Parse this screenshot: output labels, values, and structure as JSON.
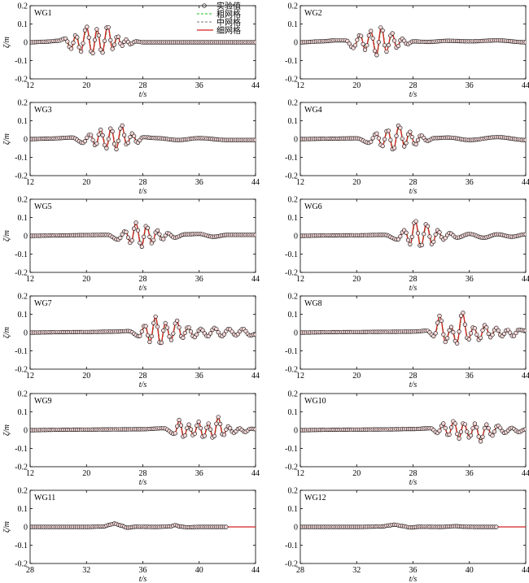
{
  "legend": [
    {
      "label": "实验值",
      "style": "marker",
      "color": "#000000"
    },
    {
      "label": "粗网格",
      "style": "dashed",
      "color": "#22b822"
    },
    {
      "label": "中网格",
      "style": "dashed",
      "color": "#777777"
    },
    {
      "label": "细网格",
      "style": "solid",
      "color": "#d42020"
    }
  ],
  "colors": {
    "coarse": "#22b822",
    "medium": "#777777",
    "fine": "#d42020",
    "experiment": "#000000",
    "marker_fill": "#f7d9d9"
  },
  "chart_data": [
    {
      "type": "line",
      "title": "WG1",
      "xlabel": "t/s",
      "ylabel": "ζ/m",
      "xlim": [
        12,
        44
      ],
      "ylim": [
        -0.2,
        0.2
      ],
      "xticks": [
        "12",
        "20",
        "28",
        "36",
        "44"
      ],
      "yticks": [
        "0.2",
        "0.1",
        "0",
        "-0.1",
        "-0.2"
      ],
      "grid": false,
      "wave": {
        "x": [
          12,
          14,
          16,
          17,
          17.8,
          18.5,
          19.2,
          20,
          20.8,
          21.5,
          22.2,
          23,
          23.7,
          24.4,
          25,
          25.6,
          26.2,
          27,
          28,
          30,
          33,
          36,
          40,
          44
        ],
        "y": [
          0,
          0.003,
          0.008,
          0.02,
          -0.035,
          0.04,
          -0.05,
          0.085,
          -0.065,
          0.07,
          -0.06,
          0.09,
          -0.035,
          0.035,
          -0.02,
          0.015,
          -0.01,
          0.005,
          0,
          0,
          0,
          0,
          0,
          0
        ]
      },
      "exp_window": [
        12,
        44
      ]
    },
    {
      "type": "line",
      "title": "WG2",
      "xlabel": "t/s",
      "ylabel": "",
      "xlim": [
        12,
        44
      ],
      "ylim": [
        -0.2,
        0.2
      ],
      "xticks": [
        "12",
        "20",
        "28",
        "36",
        "44"
      ],
      "yticks": [
        "0.2",
        "0.1",
        "0",
        "-0.1",
        "-0.2"
      ],
      "grid": false,
      "wave": {
        "x": [
          12,
          15,
          17,
          18.5,
          19.5,
          20.5,
          21.2,
          22,
          22.8,
          23.5,
          24.2,
          25,
          25.7,
          26.4,
          27.2,
          28,
          30,
          33,
          36,
          40,
          44
        ],
        "y": [
          0,
          0.005,
          0.01,
          0.01,
          -0.03,
          0.04,
          -0.04,
          0.06,
          -0.07,
          0.085,
          -0.05,
          0.05,
          -0.03,
          0.02,
          -0.01,
          0.005,
          0.002,
          0.008,
          0.005,
          0.01,
          0
        ]
      },
      "exp_window": [
        12,
        44
      ]
    },
    {
      "type": "line",
      "title": "WG3",
      "xlabel": "t/s",
      "ylabel": "ζ/m",
      "xlim": [
        12,
        44
      ],
      "ylim": [
        -0.2,
        0.2
      ],
      "xticks": [
        "12",
        "20",
        "28",
        "36",
        "44"
      ],
      "yticks": [
        "0.2",
        "0.1",
        "0",
        "-0.1",
        "-0.2"
      ],
      "grid": false,
      "wave": {
        "x": [
          12,
          15,
          18,
          19.5,
          20.5,
          21.3,
          22,
          22.8,
          23.5,
          24.2,
          25,
          25.7,
          26.5,
          27.2,
          28,
          30,
          33,
          36,
          40,
          44
        ],
        "y": [
          0,
          0.003,
          0.008,
          -0.02,
          0.025,
          -0.035,
          0.05,
          -0.05,
          0.06,
          -0.055,
          0.075,
          -0.03,
          0.03,
          -0.02,
          0.01,
          0.005,
          -0.005,
          0.005,
          -0.005,
          -0.005
        ]
      },
      "exp_window": [
        12,
        44
      ]
    },
    {
      "type": "line",
      "title": "WG4",
      "xlabel": "t/s",
      "ylabel": "",
      "xlim": [
        12,
        44
      ],
      "ylim": [
        -0.2,
        0.2
      ],
      "xticks": [
        "12",
        "20",
        "28",
        "36",
        "44"
      ],
      "yticks": [
        "0.2",
        "0.1",
        "0",
        "-0.1",
        "-0.2"
      ],
      "grid": false,
      "wave": {
        "x": [
          12,
          16,
          20,
          21.8,
          22.8,
          23.6,
          24.4,
          25.2,
          26,
          26.8,
          27.5,
          28.3,
          29.1,
          30,
          31,
          33,
          36,
          40,
          44
        ],
        "y": [
          0,
          0.002,
          0.004,
          -0.02,
          0.03,
          -0.04,
          0.05,
          -0.06,
          0.075,
          -0.04,
          0.04,
          -0.03,
          0.02,
          -0.01,
          0.005,
          0.008,
          -0.005,
          0.01,
          -0.005
        ]
      },
      "exp_window": [
        12,
        44
      ]
    },
    {
      "type": "line",
      "title": "WG5",
      "xlabel": "t/s",
      "ylabel": "ζ/m",
      "xlim": [
        12,
        44
      ],
      "ylim": [
        -0.2,
        0.2
      ],
      "xticks": [
        "12",
        "20",
        "28",
        "36",
        "44"
      ],
      "yticks": [
        "0.2",
        "0.1",
        "0",
        "-0.1",
        "-0.2"
      ],
      "grid": false,
      "wave": {
        "x": [
          12,
          16,
          20,
          23,
          24.5,
          25.5,
          26.3,
          27,
          27.8,
          28.5,
          29.3,
          30,
          30.8,
          31.5,
          32.5,
          34,
          36,
          38,
          40,
          42,
          44
        ],
        "y": [
          0,
          0.002,
          0.004,
          0.005,
          -0.02,
          0.025,
          -0.04,
          0.07,
          -0.06,
          0.055,
          -0.04,
          0.03,
          -0.02,
          0.015,
          -0.01,
          0.008,
          0.01,
          -0.005,
          0.005,
          0.005,
          0.005
        ]
      },
      "exp_window": [
        12,
        44
      ]
    },
    {
      "type": "line",
      "title": "WG6",
      "xlabel": "t/s",
      "ylabel": "",
      "xlim": [
        12,
        44
      ],
      "ylim": [
        -0.2,
        0.2
      ],
      "xticks": [
        "12",
        "20",
        "28",
        "36",
        "44"
      ],
      "yticks": [
        "0.2",
        "0.1",
        "0",
        "-0.1",
        "-0.2"
      ],
      "grid": false,
      "wave": {
        "x": [
          12,
          16,
          20,
          24,
          25.8,
          26.8,
          27.6,
          28.3,
          29.1,
          29.9,
          30.7,
          31.5,
          32.3,
          33.2,
          34.2,
          36,
          38,
          40,
          42,
          44
        ],
        "y": [
          0,
          0.002,
          0.003,
          0.005,
          -0.02,
          0.03,
          -0.045,
          0.085,
          -0.06,
          0.065,
          -0.045,
          0.03,
          -0.02,
          0.015,
          -0.01,
          0.01,
          -0.01,
          0.008,
          -0.005,
          0.008
        ]
      },
      "exp_window": [
        12,
        44
      ]
    },
    {
      "type": "line",
      "title": "WG7",
      "xlabel": "t/s",
      "ylabel": "ζ/m",
      "xlim": [
        12,
        44
      ],
      "ylim": [
        -0.2,
        0.2
      ],
      "xticks": [
        "12",
        "20",
        "28",
        "36",
        "44"
      ],
      "yticks": [
        "0.2",
        "0.1",
        "0",
        "-0.1",
        "-0.2"
      ],
      "grid": false,
      "wave": {
        "x": [
          12,
          16,
          20,
          24,
          26,
          27.5,
          28.3,
          29,
          29.8,
          30.5,
          31.2,
          32,
          32.8,
          33.6,
          34.4,
          35.3,
          36.2,
          37.2,
          38.2,
          39.2,
          40.2,
          41.2,
          42.2,
          43.2,
          44
        ],
        "y": [
          0,
          0.002,
          0.003,
          0.005,
          0.008,
          -0.02,
          0.04,
          -0.05,
          0.085,
          -0.065,
          0.05,
          -0.04,
          0.065,
          -0.03,
          0.03,
          -0.025,
          0.02,
          -0.02,
          0.025,
          -0.02,
          0.02,
          -0.015,
          0.02,
          -0.015,
          -0.01
        ]
      },
      "exp_window": [
        12,
        44
      ]
    },
    {
      "type": "line",
      "title": "WG8",
      "xlabel": "t/s",
      "ylabel": "",
      "xlim": [
        12,
        44
      ],
      "ylim": [
        -0.2,
        0.2
      ],
      "xticks": [
        "12",
        "20",
        "28",
        "36",
        "44"
      ],
      "yticks": [
        "0.2",
        "0.1",
        "0",
        "-0.1",
        "-0.2"
      ],
      "grid": false,
      "wave": {
        "x": [
          12,
          16,
          20,
          24,
          28,
          30,
          31,
          31.8,
          32.6,
          33.4,
          34.2,
          35,
          35.8,
          36.6,
          37.4,
          38.2,
          39,
          39.8,
          40.6,
          41.4,
          42.2,
          43,
          44
        ],
        "y": [
          0,
          0.002,
          0.003,
          0.004,
          0.005,
          0.01,
          -0.02,
          0.09,
          -0.05,
          0.03,
          -0.06,
          0.11,
          -0.04,
          0.03,
          -0.04,
          0.04,
          -0.025,
          0.025,
          -0.02,
          0.015,
          -0.02,
          0.015,
          0.01
        ]
      },
      "exp_window": [
        12,
        44
      ]
    },
    {
      "type": "line",
      "title": "WG9",
      "xlabel": "t/s",
      "ylabel": "ζ/m",
      "xlim": [
        12,
        44
      ],
      "ylim": [
        -0.2,
        0.2
      ],
      "xticks": [
        "12",
        "20",
        "28",
        "36",
        "44"
      ],
      "yticks": [
        "0.2",
        "0.1",
        "0",
        "-0.1",
        "-0.2"
      ],
      "grid": false,
      "wave": {
        "x": [
          12,
          16,
          20,
          24,
          28,
          31,
          32.5,
          33.2,
          33.8,
          34.5,
          35.2,
          35.9,
          36.6,
          37.3,
          38,
          38.7,
          39.4,
          40.1,
          40.9,
          41.7,
          42.5,
          43.3,
          44
        ],
        "y": [
          0,
          0.002,
          0.003,
          0.004,
          0.005,
          0.01,
          -0.02,
          0.055,
          -0.04,
          0.03,
          -0.03,
          0.045,
          -0.04,
          0.035,
          -0.045,
          0.07,
          -0.03,
          0.02,
          -0.015,
          0.01,
          -0.01,
          0.008,
          0.005
        ]
      },
      "exp_window": [
        12,
        44
      ]
    },
    {
      "type": "line",
      "title": "WG10",
      "xlabel": "t/s",
      "ylabel": "",
      "xlim": [
        12,
        44
      ],
      "ylim": [
        -0.2,
        0.2
      ],
      "xticks": [
        "12",
        "20",
        "28",
        "36",
        "44"
      ],
      "yticks": [
        "0.2",
        "0.1",
        "0",
        "-0.1",
        "-0.2"
      ],
      "grid": false,
      "wave": {
        "x": [
          12,
          16,
          20,
          24,
          28,
          30.5,
          31.5,
          32.3,
          33,
          33.8,
          34.5,
          35.2,
          36,
          36.8,
          37.6,
          38.4,
          39.2,
          40,
          41,
          42,
          43,
          44
        ],
        "y": [
          0,
          0.002,
          0.003,
          0.004,
          0.006,
          0.01,
          -0.015,
          0.035,
          -0.03,
          0.05,
          -0.045,
          0.04,
          -0.04,
          0.035,
          -0.06,
          0.03,
          -0.03,
          0.025,
          -0.015,
          0.012,
          -0.01,
          0.005
        ]
      },
      "exp_window": [
        12,
        44
      ]
    },
    {
      "type": "line",
      "title": "WG11",
      "xlabel": "t/s",
      "ylabel": "ζ/m",
      "xlim": [
        28,
        44
      ],
      "ylim": [
        -0.2,
        0.2
      ],
      "xticks": [
        "28",
        "32",
        "36",
        "40",
        "44"
      ],
      "yticks": [
        "0.2",
        "0.1",
        "0",
        "-0.1",
        "-0.2"
      ],
      "grid": false,
      "wave": {
        "x": [
          28,
          32,
          33.2,
          33.7,
          34,
          34.4,
          34.9,
          35.5,
          37,
          38,
          38.3,
          38.6,
          39.2,
          40,
          42,
          44
        ],
        "y": [
          0,
          0,
          0.002,
          0.012,
          0.018,
          0.008,
          -0.004,
          0.001,
          0,
          0.003,
          0.01,
          0.002,
          -0.002,
          0,
          0,
          0
        ]
      },
      "exp_window": [
        28,
        42
      ]
    },
    {
      "type": "line",
      "title": "WG12",
      "xlabel": "t/s",
      "ylabel": "",
      "xlim": [
        28,
        44
      ],
      "ylim": [
        -0.2,
        0.2
      ],
      "xticks": [
        "28",
        "32",
        "36",
        "40",
        "44"
      ],
      "yticks": [
        "0.2",
        "0.1",
        "0",
        "-0.1",
        "-0.2"
      ],
      "grid": false,
      "wave": {
        "x": [
          28,
          32,
          33.8,
          34.3,
          34.7,
          35.2,
          35.8,
          36.5,
          38,
          38.6,
          39,
          39.6,
          40.5,
          42,
          44
        ],
        "y": [
          0,
          0,
          0.002,
          0.008,
          0.012,
          0.005,
          -0.003,
          0.001,
          0,
          0.002,
          0.004,
          0.001,
          0,
          0,
          0
        ]
      },
      "exp_window": [
        28,
        42
      ]
    }
  ]
}
